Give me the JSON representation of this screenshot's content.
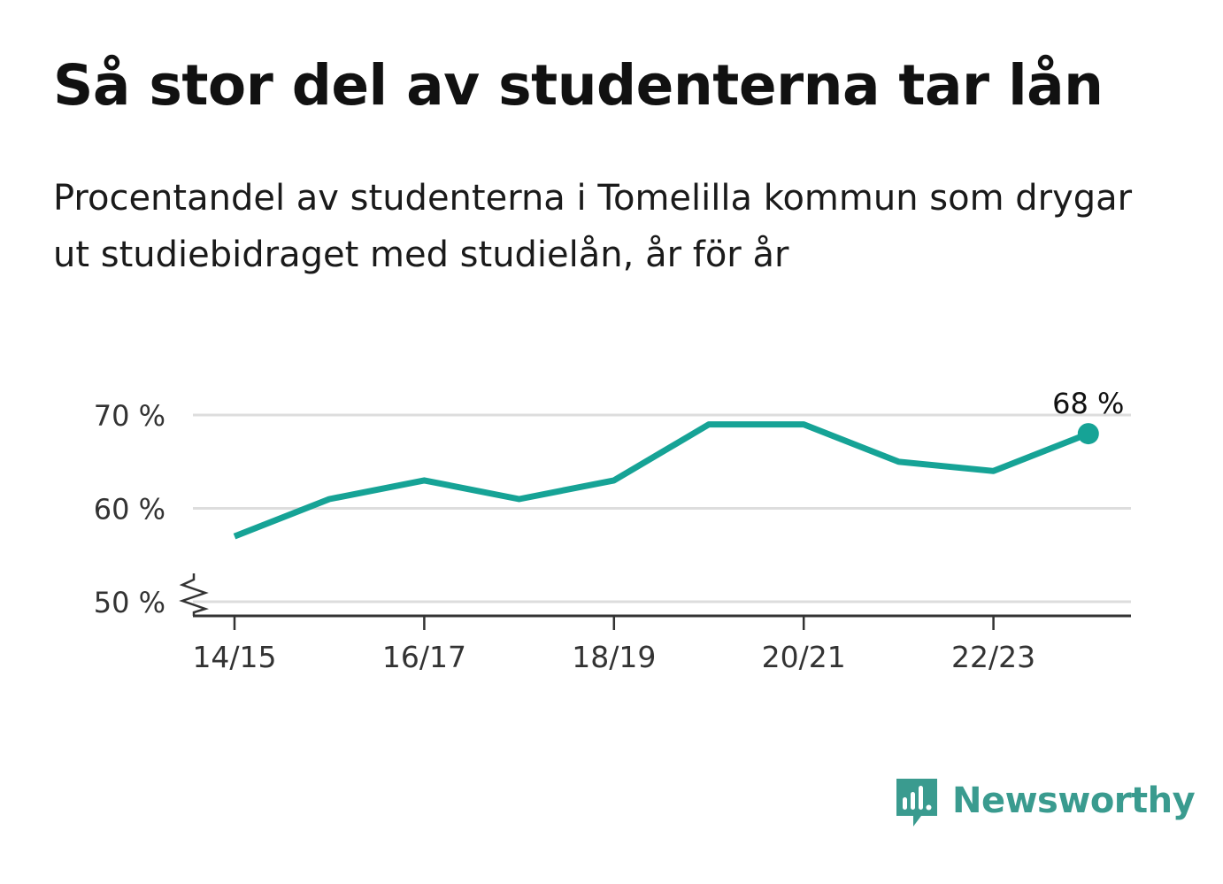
{
  "title": "Så stor del av studenterna tar lån",
  "subtitle": "Procentandel av studenterna i Tomelilla kommun som drygar ut studiebidraget med studielån, år för år",
  "colors": {
    "line": "#16a396",
    "grid": "#dddddd",
    "axis": "#333333",
    "brand": "#3a9b8f"
  },
  "brand": {
    "name": "Newsworthy",
    "icon": "newsworthy-logo-icon"
  },
  "chart_data": {
    "type": "line",
    "x": [
      "14/15",
      "15/16",
      "16/17",
      "17/18",
      "18/19",
      "19/20",
      "20/21",
      "21/22",
      "22/23",
      "23/24"
    ],
    "values": [
      57,
      61,
      63,
      61,
      63,
      69,
      69,
      65,
      64,
      68
    ],
    "unit": "%",
    "ylim": [
      50,
      70
    ],
    "y_ticks": [
      50,
      60,
      70
    ],
    "y_tick_labels": [
      "50 %",
      "60 %",
      "70 %"
    ],
    "x_tick_labels": [
      "14/15",
      "16/17",
      "18/19",
      "20/21",
      "22/23"
    ],
    "end_label": "68 %",
    "grid": true,
    "axis_break": true,
    "legend": "none"
  }
}
